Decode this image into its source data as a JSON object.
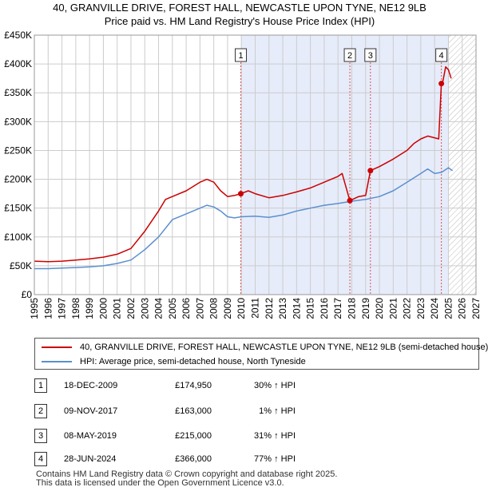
{
  "header": {
    "title_line1": "40, GRANVILLE DRIVE, FOREST HALL, NEWCASTLE UPON TYNE, NE12 9LB",
    "title_line2": "Price paid vs. HM Land Registry's House Price Index (HPI)"
  },
  "colors": {
    "price_line": "#cc0000",
    "hpi_line": "#5b8fcf",
    "shade": "#e6ecfa",
    "marker_line": "#e05050",
    "grid": "#cccccc"
  },
  "chart_data": {
    "type": "line",
    "title": "Price paid vs. HM Land Registry's House Price Index (HPI)",
    "xlim": [
      1995,
      2027
    ],
    "ylim": [
      0,
      450000
    ],
    "x_ticks": [
      1995,
      1996,
      1997,
      1998,
      1999,
      2000,
      2001,
      2002,
      2003,
      2004,
      2005,
      2006,
      2007,
      2008,
      2009,
      2010,
      2011,
      2012,
      2013,
      2014,
      2015,
      2016,
      2017,
      2018,
      2019,
      2020,
      2021,
      2022,
      2023,
      2024,
      2025,
      2026,
      2027
    ],
    "y_ticks": [
      0,
      50000,
      100000,
      150000,
      200000,
      250000,
      300000,
      350000,
      400000,
      450000
    ],
    "y_tick_labels": [
      "£0",
      "£50K",
      "£100K",
      "£150K",
      "£200K",
      "£250K",
      "£300K",
      "£350K",
      "£400K",
      "£450K"
    ],
    "shaded_region": [
      2009.96,
      2025.0
    ],
    "forecast_start": 2025.0,
    "series": [
      {
        "name": "40, GRANVILLE DRIVE, FOREST HALL, NEWCASTLE UPON TYNE, NE12 9LB (semi-detached house)",
        "color": "#cc0000",
        "x": [
          1995,
          1996,
          1997,
          1998,
          1999,
          2000,
          2001,
          2002,
          2003,
          2004,
          2004.5,
          2005,
          2006,
          2007,
          2007.5,
          2008,
          2008.5,
          2009,
          2009.5,
          2009.96,
          2010.5,
          2011,
          2012,
          2013,
          2014,
          2015,
          2016,
          2017,
          2017.3,
          2017.86,
          2018.5,
          2019,
          2019.35,
          2020,
          2021,
          2022,
          2022.5,
          2023,
          2023.5,
          2024,
          2024.3,
          2024.49,
          2024.6,
          2024.8,
          2025,
          2025.2
        ],
        "y": [
          58000,
          57000,
          58000,
          60000,
          62000,
          65000,
          70000,
          80000,
          110000,
          145000,
          165000,
          170000,
          180000,
          195000,
          200000,
          195000,
          180000,
          170000,
          172000,
          174950,
          180000,
          175000,
          168000,
          172000,
          178000,
          185000,
          195000,
          205000,
          210000,
          163000,
          170000,
          172000,
          215000,
          222000,
          235000,
          250000,
          262000,
          270000,
          275000,
          272000,
          270000,
          366000,
          370000,
          395000,
          390000,
          375000
        ]
      },
      {
        "name": "HPI: Average price, semi-detached house, North Tyneside",
        "color": "#5b8fcf",
        "x": [
          1995,
          1996,
          1997,
          1998,
          1999,
          2000,
          2001,
          2002,
          2003,
          2004,
          2005,
          2006,
          2007,
          2007.5,
          2008,
          2008.5,
          2009,
          2009.5,
          2010,
          2011,
          2012,
          2013,
          2014,
          2015,
          2016,
          2017,
          2018,
          2019,
          2020,
          2021,
          2022,
          2023,
          2023.5,
          2024,
          2024.5,
          2025,
          2025.3
        ],
        "y": [
          45000,
          45000,
          46000,
          47000,
          48000,
          50000,
          54000,
          60000,
          78000,
          100000,
          130000,
          140000,
          150000,
          155000,
          152000,
          145000,
          135000,
          133000,
          135000,
          136000,
          134000,
          138000,
          145000,
          150000,
          155000,
          158000,
          162000,
          165000,
          170000,
          180000,
          195000,
          210000,
          218000,
          210000,
          212000,
          220000,
          215000
        ]
      }
    ],
    "sales": [
      {
        "n": "1",
        "x": 2009.96,
        "y": 174950
      },
      {
        "n": "2",
        "x": 2017.86,
        "y": 163000
      },
      {
        "n": "3",
        "x": 2019.35,
        "y": 215000
      },
      {
        "n": "4",
        "x": 2024.49,
        "y": 366000
      }
    ]
  },
  "legend": {
    "price_label": "40, GRANVILLE DRIVE, FOREST HALL, NEWCASTLE UPON TYNE, NE12 9LB (semi-detached house)",
    "hpi_label": "HPI: Average price, semi-detached house, North Tyneside"
  },
  "transactions": [
    {
      "n": "1",
      "date": "18-DEC-2009",
      "price": "£174,950",
      "hpi": "30% ↑ HPI"
    },
    {
      "n": "2",
      "date": "09-NOV-2017",
      "price": "£163,000",
      "hpi": "1% ↑ HPI"
    },
    {
      "n": "3",
      "date": "08-MAY-2019",
      "price": "£215,000",
      "hpi": "31% ↑ HPI"
    },
    {
      "n": "4",
      "date": "28-JUN-2024",
      "price": "£366,000",
      "hpi": "77% ↑ HPI"
    }
  ],
  "footer": {
    "line1": "Contains HM Land Registry data © Crown copyright and database right 2025.",
    "line2": "This data is licensed under the Open Government Licence v3.0."
  }
}
